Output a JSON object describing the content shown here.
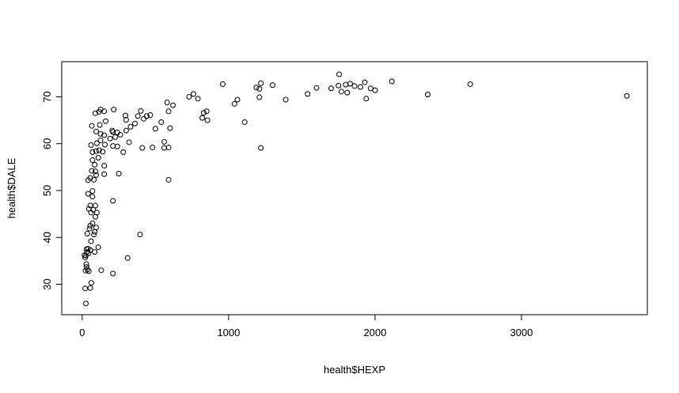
{
  "chart_data": {
    "type": "scatter",
    "title": "",
    "xlabel": "health$HEXP",
    "ylabel": "health$DALE",
    "xlim": [
      -140,
      3860
    ],
    "ylim": [
      23.5,
      77.5
    ],
    "x_ticks": [
      0,
      1000,
      2000,
      3000
    ],
    "y_ticks": [
      30,
      40,
      50,
      60,
      70
    ],
    "grid": false,
    "marker": "open-circle",
    "marker_color": "#000000",
    "background": "#ffffff",
    "points": [
      [
        25,
        25.9
      ],
      [
        20,
        29.1
      ],
      [
        55,
        29.2
      ],
      [
        62,
        30.3
      ],
      [
        210,
        32.3
      ],
      [
        130,
        33.0
      ],
      [
        310,
        35.6
      ],
      [
        22,
        32.9
      ],
      [
        30,
        33.7
      ],
      [
        35,
        33.1
      ],
      [
        45,
        32.8
      ],
      [
        28,
        34.3
      ],
      [
        20,
        35.7
      ],
      [
        15,
        36.2
      ],
      [
        25,
        36.1
      ],
      [
        32,
        36.9
      ],
      [
        30,
        37.5
      ],
      [
        40,
        37.6
      ],
      [
        42,
        36.6
      ],
      [
        55,
        37.3
      ],
      [
        85,
        36.9
      ],
      [
        110,
        37.9
      ],
      [
        60,
        39.2
      ],
      [
        80,
        40.6
      ],
      [
        35,
        40.8
      ],
      [
        50,
        41.9
      ],
      [
        85,
        41.2
      ],
      [
        95,
        42.1
      ],
      [
        55,
        42.5
      ],
      [
        70,
        43.0
      ],
      [
        90,
        44.4
      ],
      [
        60,
        45.3
      ],
      [
        75,
        45.9
      ],
      [
        45,
        46.1
      ],
      [
        55,
        46.8
      ],
      [
        90,
        46.8
      ],
      [
        100,
        45.3
      ],
      [
        70,
        48.7
      ],
      [
        40,
        49.3
      ],
      [
        70,
        49.9
      ],
      [
        210,
        47.8
      ],
      [
        395,
        40.6
      ],
      [
        40,
        52.2
      ],
      [
        55,
        52.7
      ],
      [
        80,
        52.3
      ],
      [
        95,
        53.3
      ],
      [
        65,
        54.2
      ],
      [
        90,
        54.1
      ],
      [
        150,
        53.5
      ],
      [
        250,
        53.6
      ],
      [
        85,
        55.5
      ],
      [
        70,
        56.5
      ],
      [
        110,
        57.0
      ],
      [
        150,
        55.3
      ],
      [
        70,
        58.2
      ],
      [
        95,
        58.4
      ],
      [
        115,
        58.6
      ],
      [
        140,
        58.3
      ],
      [
        280,
        58.2
      ],
      [
        590,
        52.3
      ],
      [
        60,
        59.7
      ],
      [
        100,
        60.1
      ],
      [
        125,
        60.7
      ],
      [
        155,
        59.8
      ],
      [
        210,
        59.5
      ],
      [
        240,
        59.4
      ],
      [
        410,
        59.1
      ],
      [
        480,
        59.2
      ],
      [
        560,
        59.1
      ],
      [
        590,
        59.2
      ],
      [
        1220,
        59.1
      ],
      [
        65,
        63.8
      ],
      [
        95,
        62.6
      ],
      [
        125,
        62.1
      ],
      [
        150,
        61.8
      ],
      [
        190,
        61.1
      ],
      [
        210,
        62.5
      ],
      [
        225,
        61.4
      ],
      [
        240,
        62.4
      ],
      [
        260,
        61.9
      ],
      [
        300,
        62.8
      ],
      [
        330,
        63.6
      ],
      [
        360,
        64.3
      ],
      [
        320,
        60.3
      ],
      [
        500,
        63.2
      ],
      [
        540,
        64.6
      ],
      [
        560,
        60.4
      ],
      [
        600,
        63.3
      ],
      [
        120,
        64.0
      ],
      [
        160,
        64.8
      ],
      [
        205,
        62.8
      ],
      [
        295,
        66.0
      ],
      [
        300,
        65.1
      ],
      [
        380,
        65.9
      ],
      [
        420,
        65.3
      ],
      [
        440,
        65.9
      ],
      [
        465,
        66.1
      ],
      [
        90,
        66.5
      ],
      [
        115,
        66.8
      ],
      [
        125,
        67.3
      ],
      [
        150,
        66.9
      ],
      [
        215,
        67.3
      ],
      [
        400,
        67.0
      ],
      [
        590,
        66.9
      ],
      [
        620,
        68.2
      ],
      [
        580,
        68.8
      ],
      [
        730,
        70.0
      ],
      [
        760,
        70.6
      ],
      [
        790,
        69.6
      ],
      [
        820,
        65.5
      ],
      [
        830,
        66.6
      ],
      [
        850,
        66.9
      ],
      [
        855,
        65.0
      ],
      [
        960,
        72.7
      ],
      [
        1040,
        68.5
      ],
      [
        1060,
        69.4
      ],
      [
        1110,
        64.6
      ],
      [
        1190,
        72.0
      ],
      [
        1210,
        71.7
      ],
      [
        1220,
        72.9
      ],
      [
        1210,
        69.9
      ],
      [
        1300,
        72.5
      ],
      [
        1390,
        69.4
      ],
      [
        1540,
        70.6
      ],
      [
        1600,
        71.9
      ],
      [
        1700,
        71.8
      ],
      [
        1750,
        72.4
      ],
      [
        1755,
        74.8
      ],
      [
        1770,
        71.1
      ],
      [
        1800,
        72.6
      ],
      [
        1830,
        72.8
      ],
      [
        1860,
        72.3
      ],
      [
        1900,
        72.1
      ],
      [
        1930,
        73.1
      ],
      [
        1940,
        69.6
      ],
      [
        1970,
        71.8
      ],
      [
        2000,
        71.4
      ],
      [
        1810,
        70.9
      ],
      [
        2115,
        73.3
      ],
      [
        2360,
        70.5
      ],
      [
        2650,
        72.7
      ],
      [
        3720,
        70.2
      ]
    ]
  }
}
